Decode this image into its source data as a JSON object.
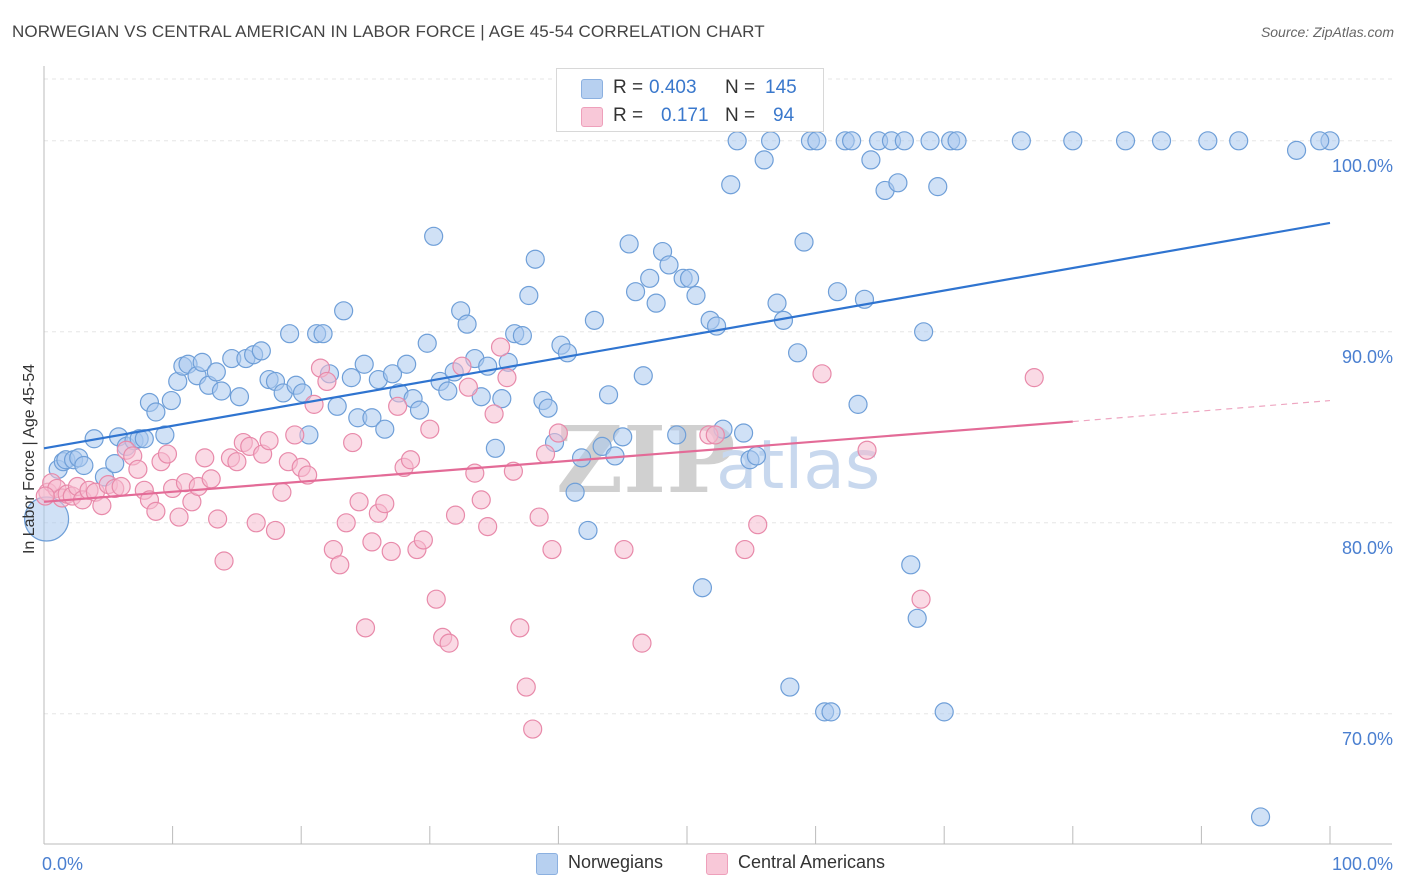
{
  "title": "NORWEGIAN VS CENTRAL AMERICAN IN LABOR FORCE | AGE 45-54 CORRELATION CHART",
  "source": "Source: ZipAtlas.com",
  "watermark": {
    "zip": "ZIP",
    "atlas": "atlas"
  },
  "colors": {
    "blue_fill": "#a9c8ee",
    "blue_stroke": "#6f9fd8",
    "blue_line": "#2f74d0",
    "pink_fill": "#f5bcd0",
    "pink_stroke": "#e88aaa",
    "pink_line": "#e36b97",
    "tick_label": "#4a7fd0",
    "grid": "#e5e5e5"
  },
  "legend_top": {
    "rows": [
      {
        "r_label": "R =",
        "r_value": "0.403",
        "n_label": "N =",
        "n_value": "145"
      },
      {
        "r_label": "R =",
        "r_value": "0.171",
        "n_label": "N =",
        "n_value": "94"
      }
    ]
  },
  "legend_bottom": [
    "Norwegians",
    "Central Americans"
  ],
  "chart_data": {
    "type": "scatter",
    "xlabel": "",
    "ylabel": "In Labor Force | Age 45-54",
    "xlim": [
      0,
      100
    ],
    "ylim": [
      63,
      101.5
    ],
    "x_tick_labels": [
      "0.0%",
      "100.0%"
    ],
    "y_ticks": [
      70,
      80,
      90,
      100
    ],
    "y_tick_labels": [
      "70.0%",
      "80.0%",
      "90.0%",
      "100.0%"
    ],
    "grid": true,
    "legend_placement": "top-center",
    "series": [
      {
        "name": "Norwegians",
        "color": "#6f9fd8",
        "r": "0.403",
        "n": "145",
        "trend": {
          "x": [
            0,
            100
          ],
          "y": [
            83.9,
            95.7
          ]
        },
        "points": [
          [
            0.2,
            80.2
          ],
          [
            1.1,
            82.8
          ],
          [
            1.5,
            83.2
          ],
          [
            1.7,
            83.3
          ],
          [
            2.3,
            83.3
          ],
          [
            2.7,
            83.4
          ],
          [
            3.1,
            83.0
          ],
          [
            3.9,
            84.4
          ],
          [
            4.7,
            82.4
          ],
          [
            5.5,
            83.1
          ],
          [
            5.8,
            84.5
          ],
          [
            6.4,
            84.0
          ],
          [
            7.0,
            84.3
          ],
          [
            7.4,
            84.4
          ],
          [
            7.8,
            84.4
          ],
          [
            8.2,
            86.3
          ],
          [
            8.7,
            85.8
          ],
          [
            9.4,
            84.6
          ],
          [
            9.9,
            86.4
          ],
          [
            10.4,
            87.4
          ],
          [
            10.8,
            88.2
          ],
          [
            11.2,
            88.3
          ],
          [
            11.9,
            87.7
          ],
          [
            12.3,
            88.4
          ],
          [
            12.8,
            87.2
          ],
          [
            13.4,
            87.9
          ],
          [
            13.8,
            86.9
          ],
          [
            14.6,
            88.6
          ],
          [
            15.2,
            86.6
          ],
          [
            15.7,
            88.6
          ],
          [
            16.3,
            88.8
          ],
          [
            16.9,
            89.0
          ],
          [
            17.5,
            87.5
          ],
          [
            18.0,
            87.4
          ],
          [
            18.6,
            86.8
          ],
          [
            19.1,
            89.9
          ],
          [
            19.6,
            87.2
          ],
          [
            20.1,
            86.8
          ],
          [
            20.6,
            84.6
          ],
          [
            21.2,
            89.9
          ],
          [
            21.7,
            89.9
          ],
          [
            22.2,
            87.8
          ],
          [
            22.8,
            86.1
          ],
          [
            23.3,
            91.1
          ],
          [
            23.9,
            87.6
          ],
          [
            24.4,
            85.5
          ],
          [
            24.9,
            88.3
          ],
          [
            25.5,
            85.5
          ],
          [
            26.0,
            87.5
          ],
          [
            26.5,
            84.9
          ],
          [
            27.1,
            87.8
          ],
          [
            27.6,
            86.8
          ],
          [
            28.2,
            88.3
          ],
          [
            28.7,
            86.5
          ],
          [
            29.2,
            85.9
          ],
          [
            29.8,
            89.4
          ],
          [
            30.3,
            95.0
          ],
          [
            30.8,
            87.4
          ],
          [
            31.4,
            86.9
          ],
          [
            31.9,
            87.9
          ],
          [
            32.4,
            91.1
          ],
          [
            32.9,
            90.4
          ],
          [
            33.5,
            88.6
          ],
          [
            34.0,
            86.6
          ],
          [
            34.5,
            88.2
          ],
          [
            35.1,
            83.9
          ],
          [
            35.6,
            86.5
          ],
          [
            36.1,
            88.4
          ],
          [
            36.6,
            89.9
          ],
          [
            37.2,
            89.8
          ],
          [
            37.7,
            91.9
          ],
          [
            38.2,
            93.8
          ],
          [
            38.8,
            86.4
          ],
          [
            39.2,
            86.0
          ],
          [
            39.7,
            84.2
          ],
          [
            40.2,
            89.3
          ],
          [
            40.7,
            88.9
          ],
          [
            41.3,
            81.6
          ],
          [
            41.8,
            83.4
          ],
          [
            42.3,
            79.6
          ],
          [
            42.8,
            90.6
          ],
          [
            43.4,
            84.0
          ],
          [
            43.9,
            86.7
          ],
          [
            44.4,
            83.5
          ],
          [
            45.0,
            84.5
          ],
          [
            45.5,
            94.6
          ],
          [
            46.0,
            92.1
          ],
          [
            46.6,
            87.7
          ],
          [
            47.1,
            92.8
          ],
          [
            47.6,
            91.5
          ],
          [
            48.1,
            94.2
          ],
          [
            48.6,
            93.5
          ],
          [
            49.2,
            84.6
          ],
          [
            49.7,
            92.8
          ],
          [
            50.2,
            92.8
          ],
          [
            50.7,
            91.9
          ],
          [
            51.2,
            76.6
          ],
          [
            51.8,
            90.6
          ],
          [
            52.3,
            90.3
          ],
          [
            52.8,
            84.9
          ],
          [
            53.4,
            97.7
          ],
          [
            53.9,
            100.0
          ],
          [
            54.4,
            84.7
          ],
          [
            54.9,
            83.3
          ],
          [
            55.4,
            83.5
          ],
          [
            56.0,
            99.0
          ],
          [
            56.5,
            100.0
          ],
          [
            57.0,
            91.5
          ],
          [
            57.5,
            90.6
          ],
          [
            58.0,
            71.4
          ],
          [
            58.6,
            88.9
          ],
          [
            59.1,
            94.7
          ],
          [
            59.6,
            100.0
          ],
          [
            60.1,
            100.0
          ],
          [
            60.7,
            70.1
          ],
          [
            61.2,
            70.1
          ],
          [
            61.7,
            92.1
          ],
          [
            62.3,
            100.0
          ],
          [
            62.8,
            100.0
          ],
          [
            63.3,
            86.2
          ],
          [
            63.8,
            91.7
          ],
          [
            64.3,
            99.0
          ],
          [
            64.9,
            100.0
          ],
          [
            65.4,
            97.4
          ],
          [
            65.9,
            100.0
          ],
          [
            66.4,
            97.8
          ],
          [
            66.9,
            100.0
          ],
          [
            67.4,
            77.8
          ],
          [
            67.9,
            75.0
          ],
          [
            68.4,
            90.0
          ],
          [
            68.9,
            100.0
          ],
          [
            69.5,
            97.6
          ],
          [
            70.0,
            70.1
          ],
          [
            70.5,
            100.0
          ],
          [
            71.0,
            100.0
          ],
          [
            76.0,
            100.0
          ],
          [
            80.0,
            100.0
          ],
          [
            84.1,
            100.0
          ],
          [
            86.9,
            100.0
          ],
          [
            90.5,
            100.0
          ],
          [
            92.9,
            100.0
          ],
          [
            94.6,
            64.6
          ],
          [
            97.4,
            99.5
          ],
          [
            100.0,
            100.0
          ],
          [
            99.2,
            100.0
          ]
        ]
      },
      {
        "name": "Central Americans",
        "color": "#e88aaa",
        "r": "0.171",
        "n": "94",
        "trend": {
          "x": [
            0,
            80
          ],
          "y": [
            81.1,
            85.3
          ],
          "dashed_to": {
            "x": 100,
            "y": 86.4
          }
        },
        "points": [
          [
            0.3,
            81.6
          ],
          [
            0.6,
            82.1
          ],
          [
            1.0,
            81.8
          ],
          [
            1.4,
            81.3
          ],
          [
            1.8,
            81.5
          ],
          [
            2.2,
            81.4
          ],
          [
            2.6,
            81.9
          ],
          [
            3.0,
            81.2
          ],
          [
            3.5,
            81.7
          ],
          [
            4.0,
            81.6
          ],
          [
            4.5,
            80.9
          ],
          [
            5.0,
            82.0
          ],
          [
            5.5,
            81.8
          ],
          [
            6.0,
            81.9
          ],
          [
            6.4,
            83.8
          ],
          [
            6.9,
            83.5
          ],
          [
            7.3,
            82.8
          ],
          [
            7.8,
            81.7
          ],
          [
            8.2,
            81.2
          ],
          [
            8.7,
            80.6
          ],
          [
            9.1,
            83.2
          ],
          [
            9.6,
            83.6
          ],
          [
            10.0,
            81.8
          ],
          [
            10.5,
            80.3
          ],
          [
            11.0,
            82.1
          ],
          [
            11.5,
            81.1
          ],
          [
            12.0,
            81.9
          ],
          [
            12.5,
            83.4
          ],
          [
            13.0,
            82.3
          ],
          [
            13.5,
            80.2
          ],
          [
            14.0,
            78.0
          ],
          [
            14.5,
            83.4
          ],
          [
            15.0,
            83.2
          ],
          [
            15.5,
            84.2
          ],
          [
            16.0,
            84.0
          ],
          [
            16.5,
            80.0
          ],
          [
            17.0,
            83.6
          ],
          [
            17.5,
            84.3
          ],
          [
            18.0,
            79.6
          ],
          [
            18.5,
            81.6
          ],
          [
            19.0,
            83.2
          ],
          [
            19.5,
            84.6
          ],
          [
            20.0,
            82.9
          ],
          [
            20.5,
            82.5
          ],
          [
            21.0,
            86.2
          ],
          [
            21.5,
            88.1
          ],
          [
            22.0,
            87.4
          ],
          [
            22.5,
            78.6
          ],
          [
            23.0,
            77.8
          ],
          [
            23.5,
            80.0
          ],
          [
            24.0,
            84.2
          ],
          [
            24.5,
            81.1
          ],
          [
            25.0,
            74.5
          ],
          [
            25.5,
            79.0
          ],
          [
            26.0,
            80.5
          ],
          [
            26.5,
            81.0
          ],
          [
            27.0,
            78.5
          ],
          [
            27.5,
            86.1
          ],
          [
            28.0,
            82.9
          ],
          [
            28.5,
            83.3
          ],
          [
            29.0,
            78.6
          ],
          [
            29.5,
            79.1
          ],
          [
            30.0,
            84.9
          ],
          [
            30.5,
            76.0
          ],
          [
            31.0,
            74.0
          ],
          [
            31.5,
            73.7
          ],
          [
            32.0,
            80.4
          ],
          [
            32.5,
            88.2
          ],
          [
            33.0,
            87.1
          ],
          [
            33.5,
            82.6
          ],
          [
            34.0,
            81.2
          ],
          [
            34.5,
            79.8
          ],
          [
            35.0,
            85.7
          ],
          [
            35.5,
            89.2
          ],
          [
            36.0,
            87.6
          ],
          [
            36.5,
            82.7
          ],
          [
            37.0,
            74.5
          ],
          [
            37.5,
            71.4
          ],
          [
            38.0,
            69.2
          ],
          [
            38.5,
            80.3
          ],
          [
            39.0,
            83.6
          ],
          [
            39.5,
            78.6
          ],
          [
            40.0,
            84.7
          ],
          [
            45.1,
            78.6
          ],
          [
            46.5,
            73.7
          ],
          [
            51.7,
            84.6
          ],
          [
            52.2,
            84.6
          ],
          [
            54.5,
            78.6
          ],
          [
            55.5,
            79.9
          ],
          [
            60.5,
            87.8
          ],
          [
            64.0,
            83.8
          ],
          [
            68.2,
            76.0
          ],
          [
            77.0,
            87.6
          ],
          [
            0.1,
            81.4
          ]
        ]
      }
    ]
  }
}
